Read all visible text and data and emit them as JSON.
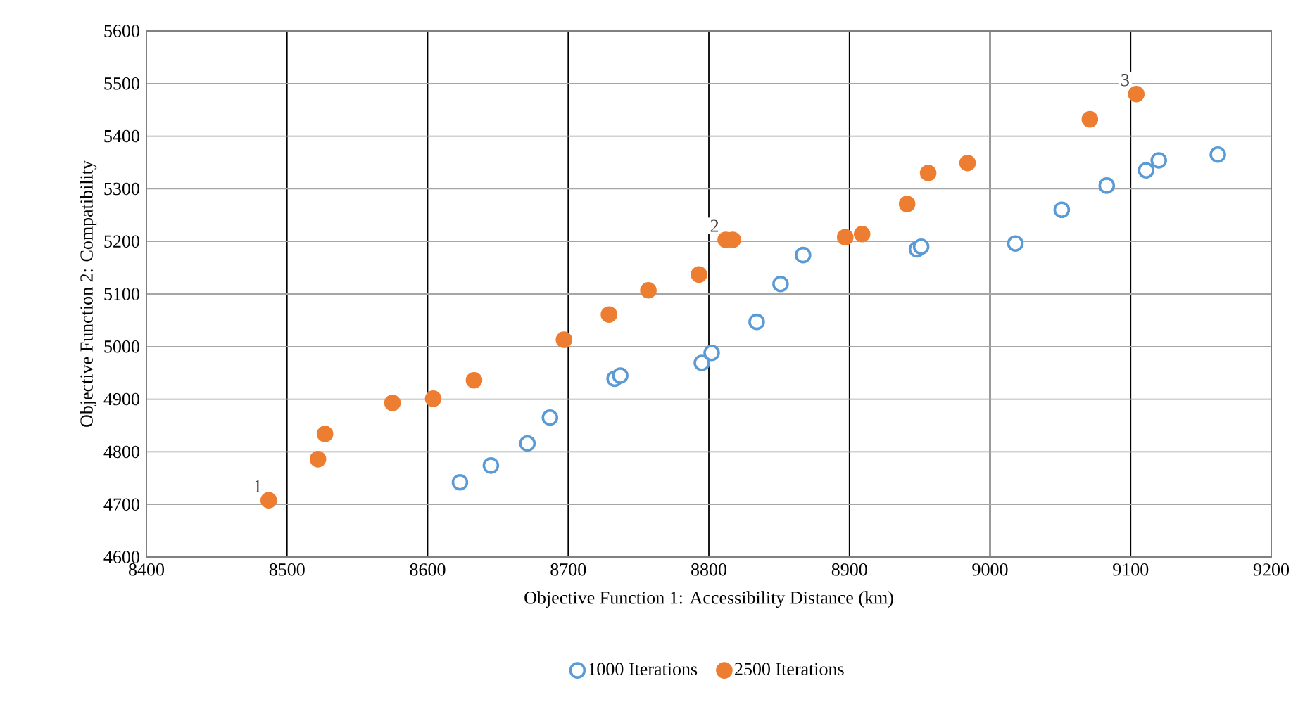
{
  "chart_data": {
    "type": "scatter",
    "xlabel": "Objective Function 1: Accessibility Distance (km)",
    "ylabel": "Objective Function 2: Compatibility",
    "xlim": [
      8400,
      9200
    ],
    "xticks": [
      8400,
      8500,
      8600,
      8700,
      8800,
      8900,
      9000,
      9100,
      9200
    ],
    "ylim": [
      4600,
      5600
    ],
    "yticks": [
      4600,
      4700,
      4800,
      4900,
      5000,
      5100,
      5200,
      5300,
      5400,
      5500,
      5600
    ],
    "grid": true,
    "legend": "bottom",
    "series": [
      {
        "name": "1000 Iterations",
        "color": "#5b9bd5",
        "x": [
          8623,
          8645,
          8671,
          8687,
          8733,
          8737,
          8795,
          8802,
          8834,
          8851,
          8867,
          8948,
          8951,
          9018,
          9051,
          9083,
          9111,
          9120,
          9162
        ],
        "values": [
          4742,
          4774,
          4816,
          4865,
          4939,
          4945,
          4969,
          4988,
          5047,
          5119,
          5174,
          5185,
          5190,
          5196,
          5260,
          5306,
          5335,
          5354,
          5365
        ]
      },
      {
        "name": "2500 Iterations",
        "color": "#ed7d31",
        "x": [
          8487,
          8522,
          8527,
          8575,
          8604,
          8633,
          8697,
          8729,
          8757,
          8793,
          8812,
          8817,
          8897,
          8909,
          8941,
          8956,
          8984,
          9071,
          9104
        ],
        "values": [
          4708,
          4786,
          4834,
          4893,
          4901,
          4936,
          5013,
          5061,
          5107,
          5137,
          5203,
          5203,
          5208,
          5214,
          5271,
          5330,
          5349,
          5432,
          5480
        ]
      }
    ],
    "annotations": [
      {
        "text": "1",
        "x": 8487,
        "y": 4708
      },
      {
        "text": "2",
        "x": 8812,
        "y": 5203
      },
      {
        "text": "3",
        "x": 9104,
        "y": 5480
      }
    ]
  }
}
